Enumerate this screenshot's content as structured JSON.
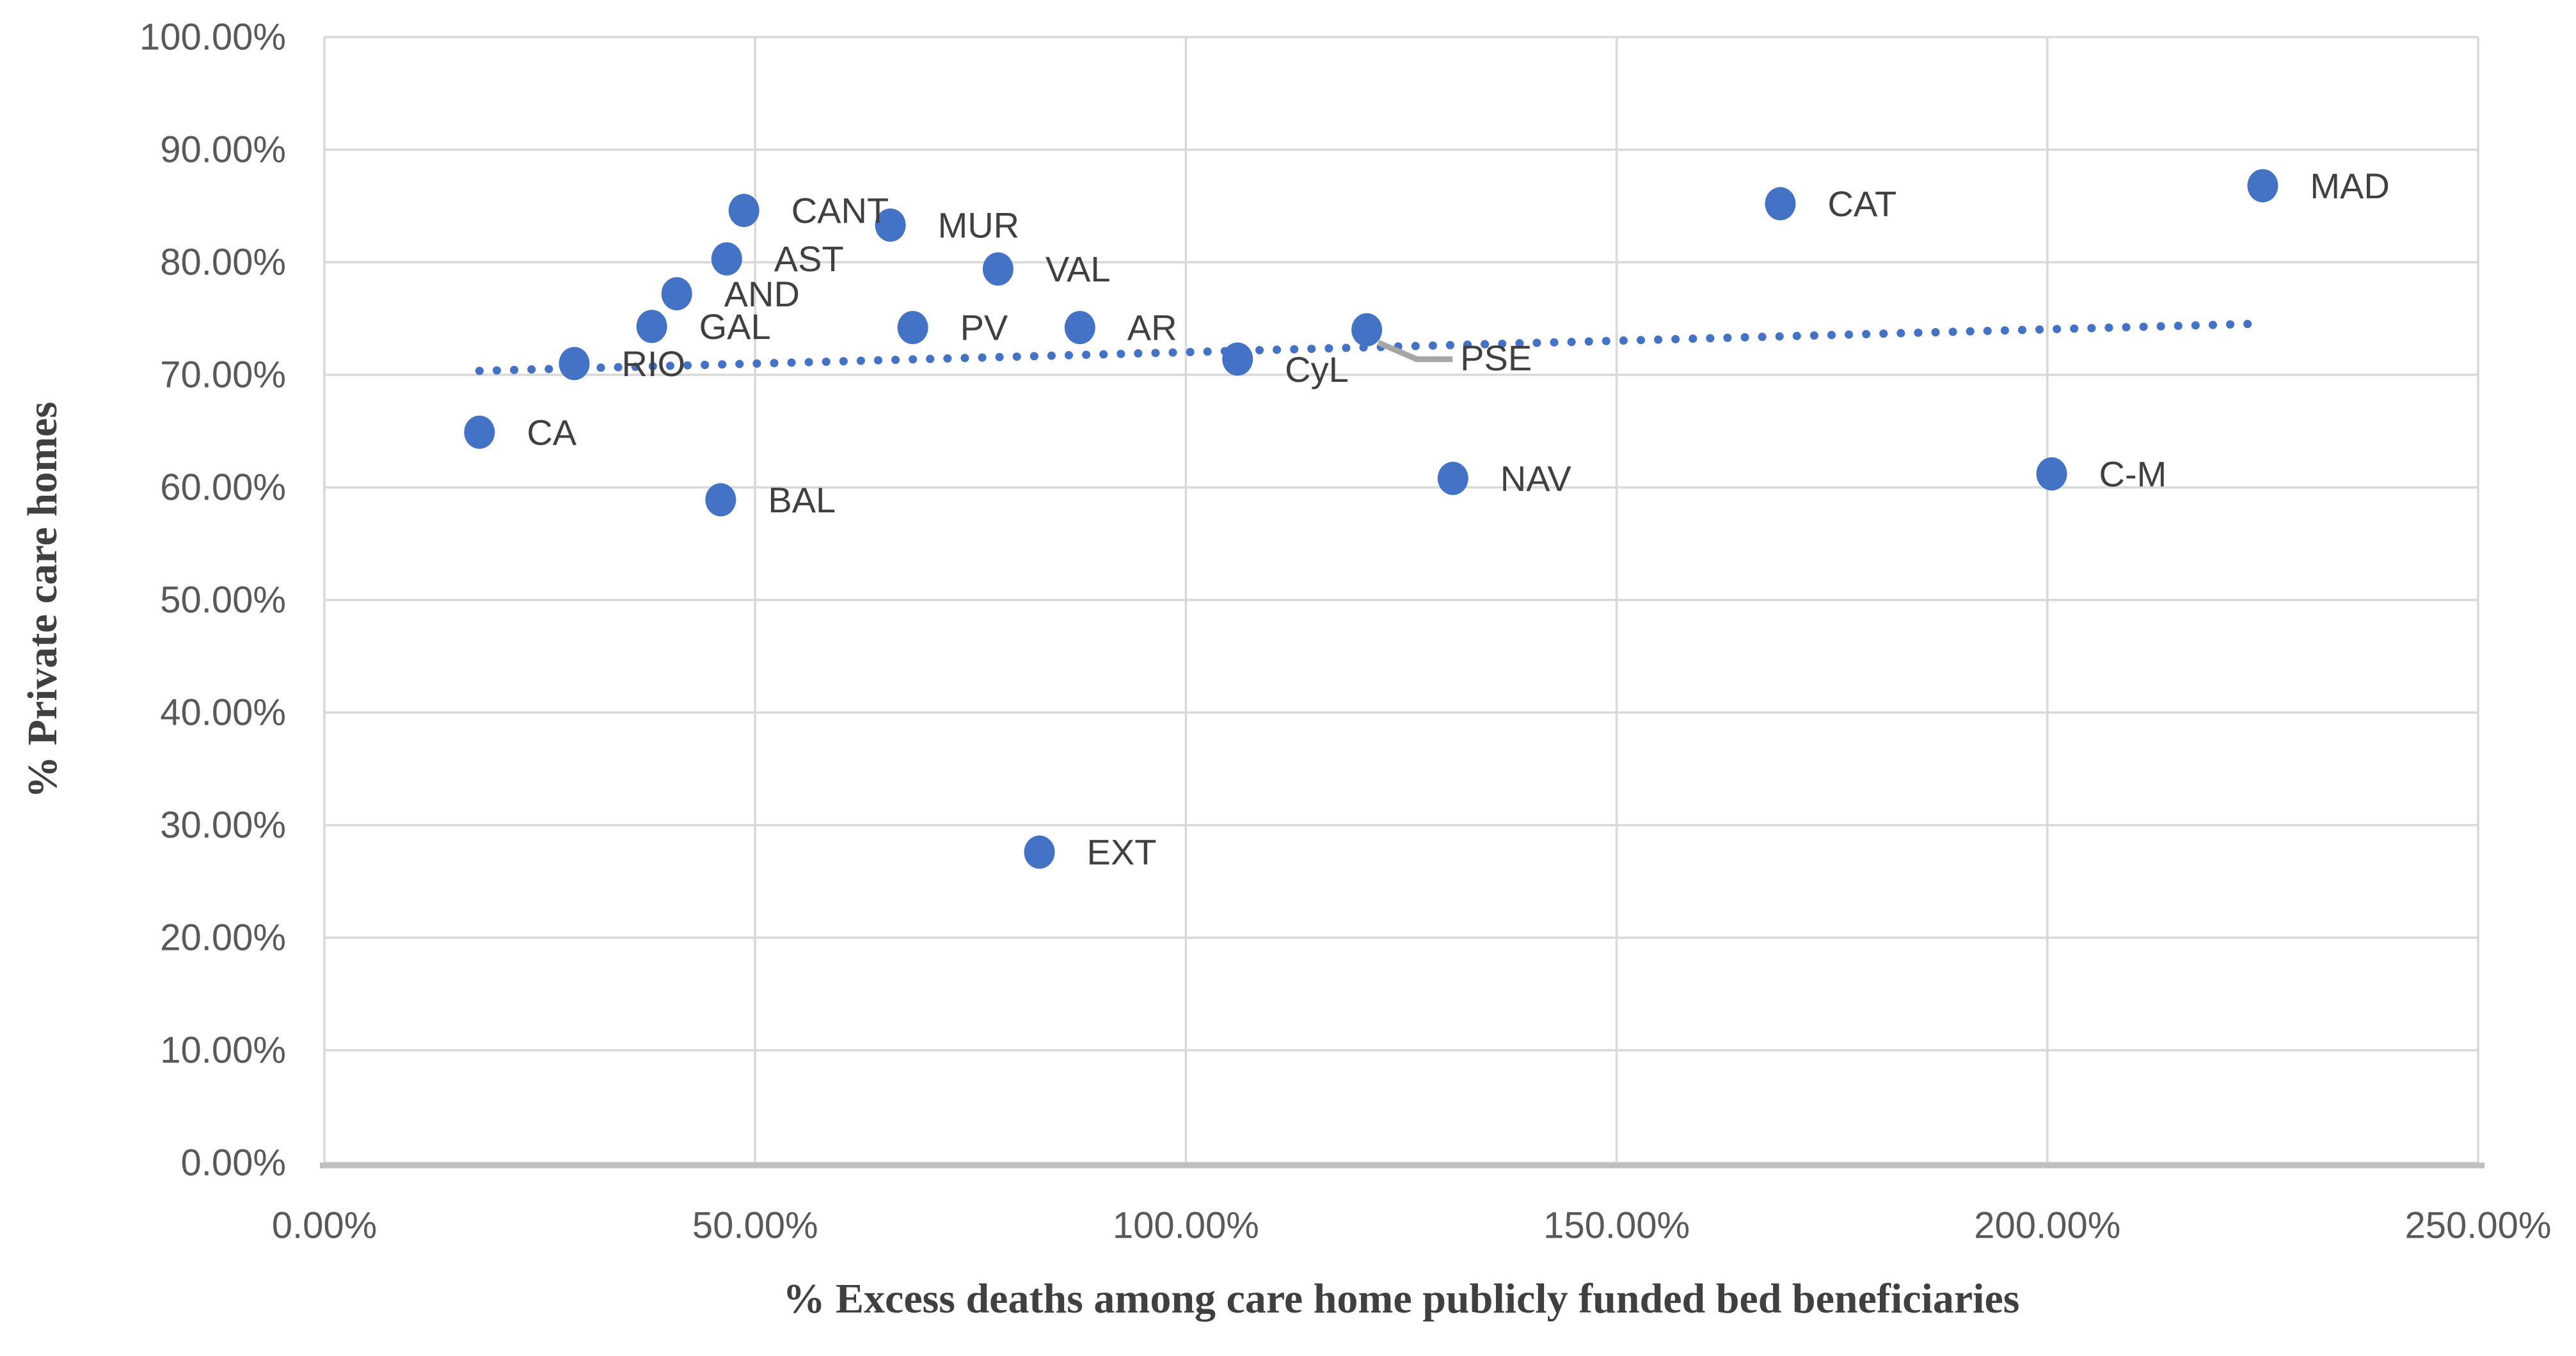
{
  "chart_data": {
    "type": "scatter",
    "title": "",
    "xlabel": "% Excess deaths among care home publicly funded bed beneficiaries",
    "ylabel": "% Private care homes",
    "xlim": [
      0,
      250
    ],
    "ylim": [
      0,
      100
    ],
    "grid": true,
    "legend": "none",
    "x_ticks": [
      {
        "value": 0,
        "label": "0.00%"
      },
      {
        "value": 50,
        "label": "50.00%"
      },
      {
        "value": 100,
        "label": "100.00%"
      },
      {
        "value": 150,
        "label": "150.00%"
      },
      {
        "value": 200,
        "label": "200.00%"
      },
      {
        "value": 250,
        "label": "250.00%"
      }
    ],
    "y_ticks": [
      {
        "value": 0,
        "label": "0.00%"
      },
      {
        "value": 10,
        "label": "10.00%"
      },
      {
        "value": 20,
        "label": "20.00%"
      },
      {
        "value": 30,
        "label": "30.00%"
      },
      {
        "value": 40,
        "label": "40.00%"
      },
      {
        "value": 50,
        "label": "50.00%"
      },
      {
        "value": 60,
        "label": "60.00%"
      },
      {
        "value": 70,
        "label": "70.00%"
      },
      {
        "value": 80,
        "label": "80.00%"
      },
      {
        "value": 90,
        "label": "90.00%"
      },
      {
        "value": 100,
        "label": "100.00%"
      }
    ],
    "points": [
      {
        "label": "CA",
        "x": 18.0,
        "y": 64.9
      },
      {
        "label": "RIO",
        "x": 29.0,
        "y": 71.0
      },
      {
        "label": "GAL",
        "x": 38.0,
        "y": 74.3
      },
      {
        "label": "AND",
        "x": 40.9,
        "y": 77.2
      },
      {
        "label": "AST",
        "x": 46.7,
        "y": 80.3
      },
      {
        "label": "CANT",
        "x": 48.7,
        "y": 84.6
      },
      {
        "label": "BAL",
        "x": 46.0,
        "y": 58.9
      },
      {
        "label": "MUR",
        "x": 65.7,
        "y": 83.3
      },
      {
        "label": "PV",
        "x": 68.3,
        "y": 74.2
      },
      {
        "label": "VAL",
        "x": 78.2,
        "y": 79.4
      },
      {
        "label": "AR",
        "x": 87.7,
        "y": 74.2
      },
      {
        "label": "EXT",
        "x": 83.0,
        "y": 27.6
      },
      {
        "label": "CyL",
        "x": 106.0,
        "y": 71.4,
        "label_dy": 16
      },
      {
        "label": "PSE",
        "x": 121.0,
        "y": 74.0,
        "label_dx": 146,
        "label_dy": 44,
        "leader": true
      },
      {
        "label": "NAV",
        "x": 131.0,
        "y": 60.8
      },
      {
        "label": "CAT",
        "x": 169.0,
        "y": 85.2
      },
      {
        "label": "C-M",
        "x": 200.5,
        "y": 61.2
      },
      {
        "label": "MAD",
        "x": 225.0,
        "y": 86.8
      }
    ],
    "trendline": {
      "x1": 18,
      "y1": 70.35,
      "x2": 225,
      "y2": 74.55,
      "style": "round-dotted"
    },
    "colors": {
      "marker": "#4472C4",
      "trend": "#4472C4",
      "gridline": "#D9D9D9",
      "axis_line": "#BFBFBF",
      "tick_text": "#595959",
      "label_text": "#404040",
      "leader_line": "#A6A6A6",
      "background": "#FFFFFF"
    }
  }
}
